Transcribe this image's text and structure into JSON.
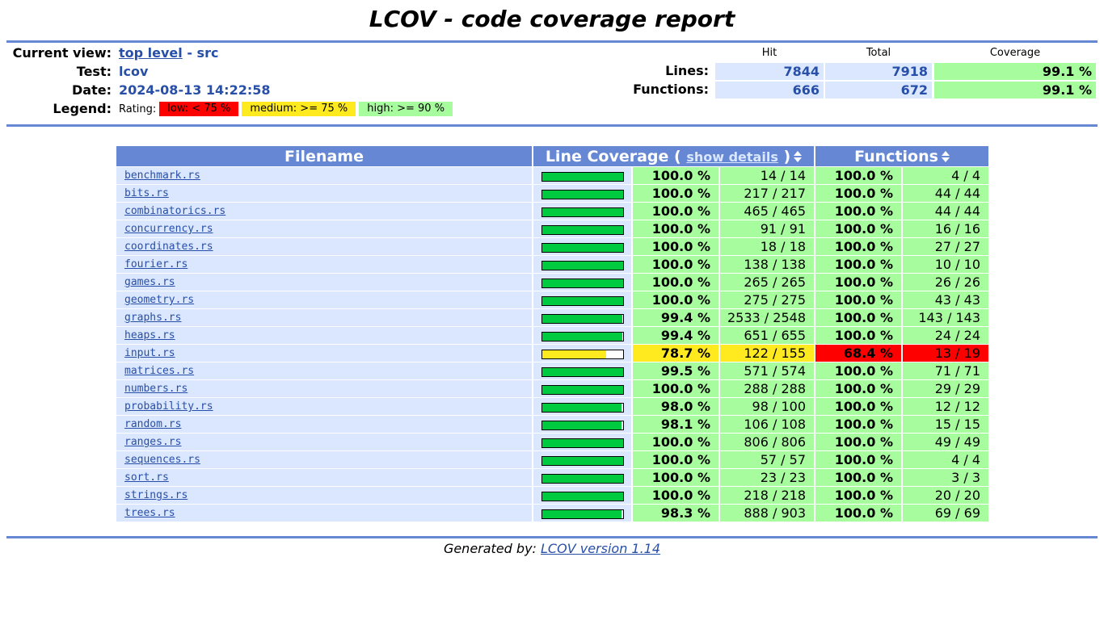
{
  "page_title": "LCOV - code coverage report",
  "header": {
    "current_view_label": "Current view:",
    "current_view_link": "top level",
    "current_view_sep": " - ",
    "current_view_dir": "src",
    "test_label": "Test:",
    "test_value": "lcov",
    "date_label": "Date:",
    "date_value": "2024-08-13 14:22:58",
    "legend_label": "Legend:",
    "rating_label": "Rating:",
    "legend_low": "low: < 75 %",
    "legend_medium": "medium: >= 75 %",
    "legend_high": "high: >= 90 %"
  },
  "summary": {
    "col_hit": "Hit",
    "col_total": "Total",
    "col_coverage": "Coverage",
    "lines_label": "Lines:",
    "lines_hit": "7844",
    "lines_total": "7918",
    "lines_cov": "99.1 %",
    "functions_label": "Functions:",
    "functions_hit": "666",
    "functions_total": "672",
    "functions_cov": "99.1 %"
  },
  "table": {
    "col_filename": "Filename",
    "col_line_cov_prefix": "Line Coverage ( ",
    "col_show_details": "show details",
    "col_line_cov_suffix": " )",
    "col_functions": "Functions",
    "rows": [
      {
        "file": "benchmark.rs",
        "line_pct": "100.0 %",
        "line_frac": 1.0,
        "line_rating": "hi",
        "lines": "14 / 14",
        "fn_pct": "100.0 %",
        "fn_rating": "hi",
        "fns": "4 / 4"
      },
      {
        "file": "bits.rs",
        "line_pct": "100.0 %",
        "line_frac": 1.0,
        "line_rating": "hi",
        "lines": "217 / 217",
        "fn_pct": "100.0 %",
        "fn_rating": "hi",
        "fns": "44 / 44"
      },
      {
        "file": "combinatorics.rs",
        "line_pct": "100.0 %",
        "line_frac": 1.0,
        "line_rating": "hi",
        "lines": "465 / 465",
        "fn_pct": "100.0 %",
        "fn_rating": "hi",
        "fns": "44 / 44"
      },
      {
        "file": "concurrency.rs",
        "line_pct": "100.0 %",
        "line_frac": 1.0,
        "line_rating": "hi",
        "lines": "91 / 91",
        "fn_pct": "100.0 %",
        "fn_rating": "hi",
        "fns": "16 / 16"
      },
      {
        "file": "coordinates.rs",
        "line_pct": "100.0 %",
        "line_frac": 1.0,
        "line_rating": "hi",
        "lines": "18 / 18",
        "fn_pct": "100.0 %",
        "fn_rating": "hi",
        "fns": "27 / 27"
      },
      {
        "file": "fourier.rs",
        "line_pct": "100.0 %",
        "line_frac": 1.0,
        "line_rating": "hi",
        "lines": "138 / 138",
        "fn_pct": "100.0 %",
        "fn_rating": "hi",
        "fns": "10 / 10"
      },
      {
        "file": "games.rs",
        "line_pct": "100.0 %",
        "line_frac": 1.0,
        "line_rating": "hi",
        "lines": "265 / 265",
        "fn_pct": "100.0 %",
        "fn_rating": "hi",
        "fns": "26 / 26"
      },
      {
        "file": "geometry.rs",
        "line_pct": "100.0 %",
        "line_frac": 1.0,
        "line_rating": "hi",
        "lines": "275 / 275",
        "fn_pct": "100.0 %",
        "fn_rating": "hi",
        "fns": "43 / 43"
      },
      {
        "file": "graphs.rs",
        "line_pct": "99.4 %",
        "line_frac": 0.994,
        "line_rating": "hi",
        "lines": "2533 / 2548",
        "fn_pct": "100.0 %",
        "fn_rating": "hi",
        "fns": "143 / 143"
      },
      {
        "file": "heaps.rs",
        "line_pct": "99.4 %",
        "line_frac": 0.994,
        "line_rating": "hi",
        "lines": "651 / 655",
        "fn_pct": "100.0 %",
        "fn_rating": "hi",
        "fns": "24 / 24"
      },
      {
        "file": "input.rs",
        "line_pct": "78.7 %",
        "line_frac": 0.787,
        "line_rating": "med",
        "lines": "122 / 155",
        "fn_pct": "68.4 %",
        "fn_rating": "lo",
        "fns": "13 / 19"
      },
      {
        "file": "matrices.rs",
        "line_pct": "99.5 %",
        "line_frac": 0.995,
        "line_rating": "hi",
        "lines": "571 / 574",
        "fn_pct": "100.0 %",
        "fn_rating": "hi",
        "fns": "71 / 71"
      },
      {
        "file": "numbers.rs",
        "line_pct": "100.0 %",
        "line_frac": 1.0,
        "line_rating": "hi",
        "lines": "288 / 288",
        "fn_pct": "100.0 %",
        "fn_rating": "hi",
        "fns": "29 / 29"
      },
      {
        "file": "probability.rs",
        "line_pct": "98.0 %",
        "line_frac": 0.98,
        "line_rating": "hi",
        "lines": "98 / 100",
        "fn_pct": "100.0 %",
        "fn_rating": "hi",
        "fns": "12 / 12"
      },
      {
        "file": "random.rs",
        "line_pct": "98.1 %",
        "line_frac": 0.981,
        "line_rating": "hi",
        "lines": "106 / 108",
        "fn_pct": "100.0 %",
        "fn_rating": "hi",
        "fns": "15 / 15"
      },
      {
        "file": "ranges.rs",
        "line_pct": "100.0 %",
        "line_frac": 1.0,
        "line_rating": "hi",
        "lines": "806 / 806",
        "fn_pct": "100.0 %",
        "fn_rating": "hi",
        "fns": "49 / 49"
      },
      {
        "file": "sequences.rs",
        "line_pct": "100.0 %",
        "line_frac": 1.0,
        "line_rating": "hi",
        "lines": "57 / 57",
        "fn_pct": "100.0 %",
        "fn_rating": "hi",
        "fns": "4 / 4"
      },
      {
        "file": "sort.rs",
        "line_pct": "100.0 %",
        "line_frac": 1.0,
        "line_rating": "hi",
        "lines": "23 / 23",
        "fn_pct": "100.0 %",
        "fn_rating": "hi",
        "fns": "3 / 3"
      },
      {
        "file": "strings.rs",
        "line_pct": "100.0 %",
        "line_frac": 1.0,
        "line_rating": "hi",
        "lines": "218 / 218",
        "fn_pct": "100.0 %",
        "fn_rating": "hi",
        "fns": "20 / 20"
      },
      {
        "file": "trees.rs",
        "line_pct": "98.3 %",
        "line_frac": 0.983,
        "line_rating": "hi",
        "lines": "888 / 903",
        "fn_pct": "100.0 %",
        "fn_rating": "hi",
        "fns": "69 / 69"
      }
    ]
  },
  "footer": {
    "generated_by": "Generated by: ",
    "lcov_link": "LCOV version 1.14"
  },
  "colors": {
    "rule": "#6688d4",
    "header_blue": "#dae7fe",
    "link_blue": "#284fa8",
    "high": "#a7fc9d",
    "medium": "#ffea20",
    "low": "#ff0000",
    "bar_high": "#00cb40",
    "bar_medium": "#ffea20",
    "bar_low": "#ff0000"
  }
}
